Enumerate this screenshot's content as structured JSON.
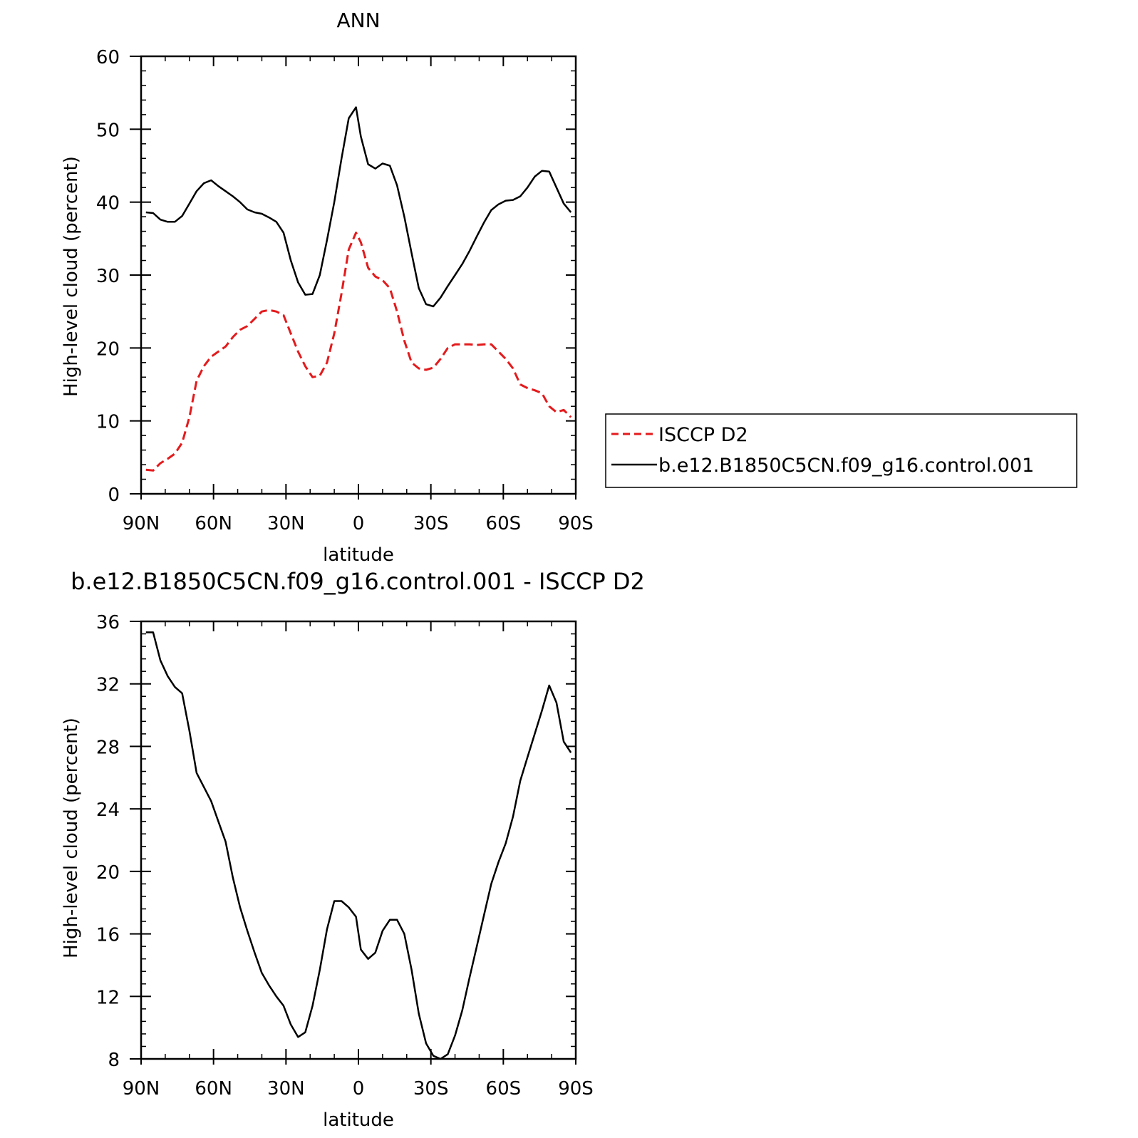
{
  "chart_data": [
    {
      "type": "line",
      "title": "ANN",
      "xlabel": "latitude",
      "ylabel": "High-level cloud (percent)",
      "xlim": [
        90,
        -90
      ],
      "ylim": [
        0,
        60
      ],
      "x_ticks": [
        90,
        60,
        30,
        0,
        -30,
        -60,
        -90
      ],
      "x_tick_labels": [
        "90N",
        "60N",
        "30N",
        "0",
        "30S",
        "60S",
        "90S"
      ],
      "y_ticks": [
        0,
        10,
        20,
        30,
        40,
        50,
        60
      ],
      "y_tick_labels": [
        "0",
        "10",
        "20",
        "30",
        "40",
        "50",
        "60"
      ],
      "legend_position": "right",
      "x": [
        88,
        85,
        82,
        79,
        76,
        73,
        70,
        67,
        64,
        61,
        58,
        55,
        52,
        49,
        46,
        43,
        40,
        37,
        34,
        31,
        28,
        25,
        22,
        19,
        16,
        13,
        10,
        7,
        4,
        1,
        -1,
        -4,
        -7,
        -10,
        -13,
        -16,
        -19,
        -22,
        -25,
        -28,
        -31,
        -34,
        -37,
        -40,
        -43,
        -46,
        -49,
        -52,
        -55,
        -58,
        -61,
        -64,
        -67,
        -70,
        -73,
        -76,
        -79,
        -82,
        -85,
        -88
      ],
      "series": [
        {
          "name": "ISCCP D2",
          "color": "#e41a1c",
          "dash": "dashed",
          "values": [
            3.3,
            3.2,
            4.2,
            4.8,
            5.5,
            7.0,
            10.5,
            15.5,
            17.5,
            18.8,
            19.5,
            20.2,
            21.5,
            22.5,
            23.0,
            24.0,
            25.0,
            25.2,
            25.0,
            24.5,
            22.0,
            19.5,
            17.5,
            16.0,
            16.2,
            18.0,
            22.0,
            27.5,
            33.5,
            35.8,
            34.5,
            31.0,
            29.8,
            29.3,
            28.2,
            25.0,
            21.0,
            18.0,
            17.2,
            17.0,
            17.3,
            18.5,
            20.0,
            20.5,
            20.5,
            20.5,
            20.4,
            20.5,
            20.5,
            19.5,
            18.5,
            17.2,
            15.0,
            14.5,
            14.2,
            13.8,
            12.0,
            11.2,
            11.5,
            10.5
          ]
        },
        {
          "name": "b.e12.B1850C5CN.f09_g16.control.001",
          "color": "#000000",
          "dash": "solid",
          "values": [
            38.6,
            38.5,
            37.6,
            37.3,
            37.3,
            38.1,
            39.8,
            41.5,
            42.6,
            43.0,
            42.2,
            41.5,
            40.8,
            40.0,
            39.0,
            38.6,
            38.4,
            37.9,
            37.3,
            35.8,
            32.0,
            29.0,
            27.3,
            27.4,
            30.0,
            34.8,
            40.0,
            46.0,
            51.5,
            53.0,
            49.0,
            45.2,
            44.6,
            45.3,
            45.0,
            42.3,
            38.0,
            33.0,
            28.2,
            26.0,
            25.7,
            26.9,
            28.5,
            30.0,
            31.5,
            33.3,
            35.3,
            37.2,
            38.9,
            39.7,
            40.2,
            40.3,
            40.8,
            42.0,
            43.5,
            44.3,
            44.2,
            42.0,
            39.8,
            38.6
          ]
        }
      ]
    },
    {
      "type": "line",
      "title": "b.e12.B1850C5CN.f09_g16.control.001 - ISCCP D2",
      "xlabel": "latitude",
      "ylabel": "High-level cloud (percent)",
      "xlim": [
        90,
        -90
      ],
      "ylim": [
        8,
        36
      ],
      "x_ticks": [
        90,
        60,
        30,
        0,
        -30,
        -60,
        -90
      ],
      "x_tick_labels": [
        "90N",
        "60N",
        "30N",
        "0",
        "30S",
        "60S",
        "90S"
      ],
      "y_ticks": [
        8,
        12,
        16,
        20,
        24,
        28,
        32,
        36
      ],
      "y_tick_labels": [
        "8",
        "12",
        "16",
        "20",
        "24",
        "28",
        "32",
        "36"
      ],
      "x": [
        88,
        85,
        82,
        79,
        76,
        73,
        70,
        67,
        64,
        61,
        58,
        55,
        52,
        49,
        46,
        43,
        40,
        37,
        34,
        31,
        28,
        25,
        22,
        19,
        16,
        13,
        10,
        7,
        4,
        1,
        -1,
        -4,
        -7,
        -10,
        -13,
        -16,
        -19,
        -22,
        -25,
        -28,
        -31,
        -34,
        -37,
        -40,
        -43,
        -46,
        -49,
        -52,
        -55,
        -58,
        -61,
        -64,
        -67,
        -70,
        -73,
        -76,
        -79,
        -82,
        -85,
        -88
      ],
      "series": [
        {
          "color": "#000000",
          "dash": "solid",
          "values": [
            35.3,
            35.3,
            33.5,
            32.5,
            31.8,
            31.4,
            29.0,
            26.3,
            25.4,
            24.5,
            23.2,
            21.9,
            19.6,
            17.7,
            16.2,
            14.8,
            13.5,
            12.7,
            12.0,
            11.4,
            10.2,
            9.4,
            9.7,
            11.4,
            13.7,
            16.3,
            18.1,
            18.1,
            17.7,
            17.1,
            15.0,
            14.4,
            14.8,
            16.2,
            16.9,
            16.9,
            16.0,
            13.7,
            10.9,
            9.0,
            8.2,
            8.0,
            8.3,
            9.5,
            11.1,
            13.2,
            15.2,
            17.2,
            19.2,
            20.6,
            21.8,
            23.5,
            25.8,
            27.3,
            28.8,
            30.3,
            31.9,
            30.8,
            28.3,
            27.6
          ]
        }
      ]
    }
  ]
}
